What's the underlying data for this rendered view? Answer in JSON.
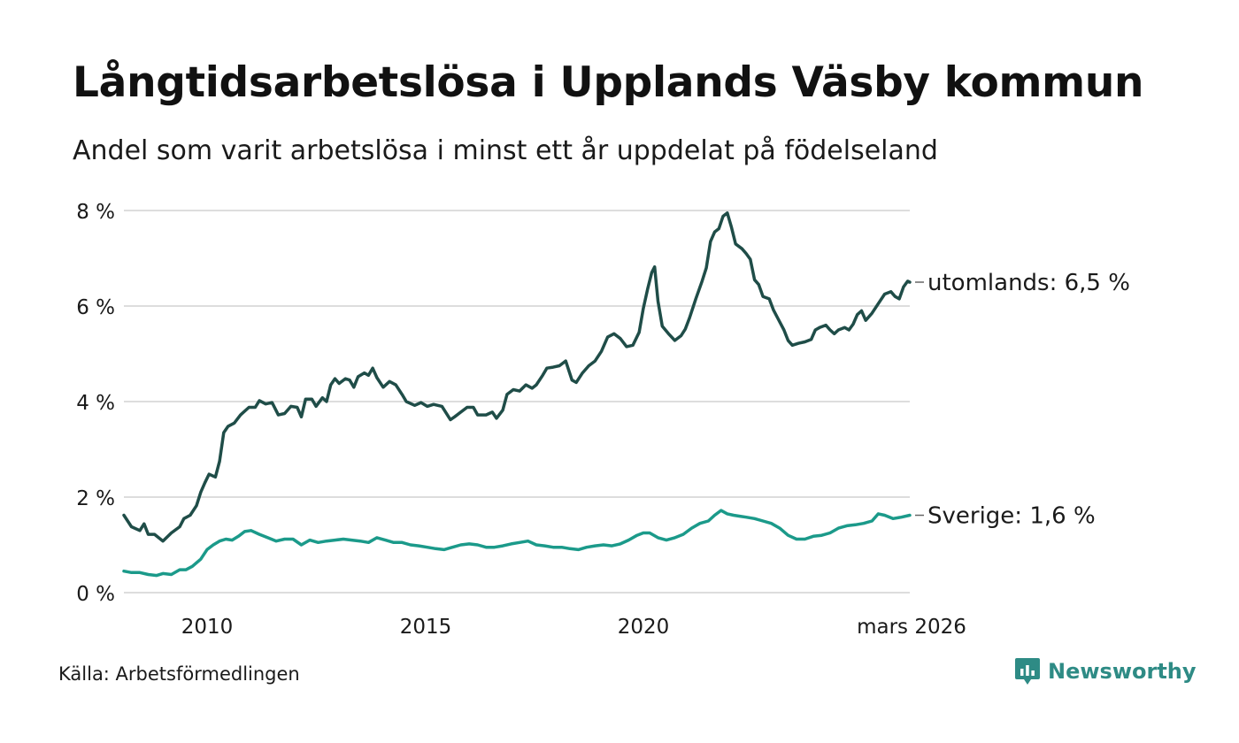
{
  "title": "Långtidsarbetslösa i Upplands Väsby kommun",
  "subtitle": "Andel som varit arbetslösa i minst ett år uppdelat på födelseland",
  "source": "Källa: Arbetsförmedlingen",
  "brand": {
    "name": "Newsworthy",
    "color": "#2e8b85",
    "icon": "newsworthy-logo-icon"
  },
  "colors": {
    "utomlands": "#1f4d48",
    "sverige": "#1b9a8a",
    "grid": "#dddddd",
    "tick": "#666666"
  },
  "chart_data": {
    "type": "line",
    "title": "Långtidsarbetslösa i Upplands Väsby kommun",
    "xlabel": "",
    "ylabel": "",
    "xlim": [
      2008.17,
      2026.17
    ],
    "ylim": [
      0,
      8
    ],
    "y_ticks": [
      {
        "value": 0,
        "label": "0 %"
      },
      {
        "value": 2,
        "label": "2 %"
      },
      {
        "value": 4,
        "label": "4 %"
      },
      {
        "value": 6,
        "label": "6 %"
      },
      {
        "value": 8,
        "label": "8 %"
      }
    ],
    "x_ticks": [
      {
        "value": 2010,
        "label": "2010"
      },
      {
        "value": 2015,
        "label": "2015"
      },
      {
        "value": 2020,
        "label": "2020"
      },
      {
        "value": 2026.17,
        "label": "mars 2026"
      }
    ],
    "series": [
      {
        "name": "utomlands",
        "end_label": "utomlands: 6,5 %",
        "points": [
          [
            2008.17,
            1.62
          ],
          [
            2008.35,
            1.38
          ],
          [
            2008.55,
            1.3
          ],
          [
            2008.65,
            1.44
          ],
          [
            2008.75,
            1.22
          ],
          [
            2008.9,
            1.22
          ],
          [
            2009.1,
            1.08
          ],
          [
            2009.3,
            1.25
          ],
          [
            2009.5,
            1.38
          ],
          [
            2009.6,
            1.55
          ],
          [
            2009.75,
            1.62
          ],
          [
            2009.9,
            1.82
          ],
          [
            2010.0,
            2.1
          ],
          [
            2010.1,
            2.3
          ],
          [
            2010.2,
            2.48
          ],
          [
            2010.35,
            2.42
          ],
          [
            2010.45,
            2.75
          ],
          [
            2010.55,
            3.35
          ],
          [
            2010.65,
            3.48
          ],
          [
            2010.8,
            3.55
          ],
          [
            2010.95,
            3.72
          ],
          [
            2011.15,
            3.88
          ],
          [
            2011.3,
            3.88
          ],
          [
            2011.4,
            4.02
          ],
          [
            2011.55,
            3.95
          ],
          [
            2011.7,
            3.98
          ],
          [
            2011.85,
            3.72
          ],
          [
            2012.0,
            3.75
          ],
          [
            2012.15,
            3.9
          ],
          [
            2012.3,
            3.88
          ],
          [
            2012.4,
            3.68
          ],
          [
            2012.5,
            4.05
          ],
          [
            2012.65,
            4.05
          ],
          [
            2012.75,
            3.9
          ],
          [
            2012.9,
            4.08
          ],
          [
            2013.0,
            4.0
          ],
          [
            2013.1,
            4.35
          ],
          [
            2013.2,
            4.48
          ],
          [
            2013.3,
            4.38
          ],
          [
            2013.45,
            4.48
          ],
          [
            2013.55,
            4.45
          ],
          [
            2013.65,
            4.3
          ],
          [
            2013.75,
            4.52
          ],
          [
            2013.9,
            4.6
          ],
          [
            2014.0,
            4.55
          ],
          [
            2014.1,
            4.7
          ],
          [
            2014.2,
            4.5
          ],
          [
            2014.35,
            4.3
          ],
          [
            2014.5,
            4.42
          ],
          [
            2014.65,
            4.35
          ],
          [
            2014.8,
            4.15
          ],
          [
            2014.9,
            4.0
          ],
          [
            2015.1,
            3.92
          ],
          [
            2015.25,
            3.98
          ],
          [
            2015.4,
            3.9
          ],
          [
            2015.55,
            3.94
          ],
          [
            2015.75,
            3.9
          ],
          [
            2015.95,
            3.62
          ],
          [
            2016.05,
            3.68
          ],
          [
            2016.2,
            3.78
          ],
          [
            2016.35,
            3.88
          ],
          [
            2016.5,
            3.88
          ],
          [
            2016.6,
            3.72
          ],
          [
            2016.8,
            3.72
          ],
          [
            2016.95,
            3.78
          ],
          [
            2017.05,
            3.65
          ],
          [
            2017.2,
            3.82
          ],
          [
            2017.3,
            4.15
          ],
          [
            2017.45,
            4.25
          ],
          [
            2017.6,
            4.22
          ],
          [
            2017.75,
            4.35
          ],
          [
            2017.9,
            4.28
          ],
          [
            2018.0,
            4.35
          ],
          [
            2018.15,
            4.55
          ],
          [
            2018.25,
            4.7
          ],
          [
            2018.4,
            4.72
          ],
          [
            2018.55,
            4.75
          ],
          [
            2018.7,
            4.85
          ],
          [
            2018.85,
            4.45
          ],
          [
            2018.95,
            4.4
          ],
          [
            2019.1,
            4.6
          ],
          [
            2019.25,
            4.75
          ],
          [
            2019.4,
            4.85
          ],
          [
            2019.55,
            5.05
          ],
          [
            2019.7,
            5.35
          ],
          [
            2019.85,
            5.42
          ],
          [
            2020.0,
            5.32
          ],
          [
            2020.15,
            5.15
          ],
          [
            2020.3,
            5.18
          ],
          [
            2020.45,
            5.45
          ],
          [
            2020.55,
            5.95
          ],
          [
            2020.65,
            6.35
          ],
          [
            2020.75,
            6.7
          ],
          [
            2020.82,
            6.82
          ],
          [
            2020.9,
            6.1
          ],
          [
            2021.0,
            5.58
          ],
          [
            2021.15,
            5.42
          ],
          [
            2021.3,
            5.28
          ],
          [
            2021.45,
            5.38
          ],
          [
            2021.55,
            5.52
          ],
          [
            2021.65,
            5.75
          ],
          [
            2021.8,
            6.15
          ],
          [
            2021.95,
            6.52
          ],
          [
            2022.05,
            6.8
          ],
          [
            2022.15,
            7.35
          ],
          [
            2022.25,
            7.55
          ],
          [
            2022.35,
            7.62
          ],
          [
            2022.45,
            7.88
          ],
          [
            2022.55,
            7.95
          ],
          [
            2022.65,
            7.65
          ],
          [
            2022.75,
            7.3
          ],
          [
            2022.9,
            7.2
          ],
          [
            2023.0,
            7.1
          ],
          [
            2023.1,
            6.98
          ],
          [
            2023.2,
            6.55
          ],
          [
            2023.3,
            6.45
          ],
          [
            2023.4,
            6.2
          ],
          [
            2023.55,
            6.15
          ],
          [
            2023.65,
            5.92
          ],
          [
            2023.75,
            5.75
          ],
          [
            2023.9,
            5.5
          ],
          [
            2024.0,
            5.28
          ],
          [
            2024.1,
            5.18
          ],
          [
            2024.25,
            5.22
          ],
          [
            2024.4,
            5.25
          ],
          [
            2024.55,
            5.3
          ],
          [
            2024.65,
            5.5
          ],
          [
            2024.75,
            5.55
          ],
          [
            2024.9,
            5.6
          ],
          [
            2025.0,
            5.5
          ],
          [
            2025.1,
            5.42
          ],
          [
            2025.2,
            5.5
          ],
          [
            2025.35,
            5.55
          ],
          [
            2025.45,
            5.5
          ],
          [
            2025.55,
            5.62
          ],
          [
            2025.65,
            5.82
          ],
          [
            2025.75,
            5.9
          ],
          [
            2025.85,
            5.7
          ],
          [
            2026.0,
            5.85
          ],
          [
            2026.15,
            6.05
          ],
          [
            2026.3,
            6.25
          ],
          [
            2026.45,
            6.3
          ],
          [
            2026.55,
            6.2
          ],
          [
            2026.65,
            6.15
          ],
          [
            2026.75,
            6.4
          ],
          [
            2026.85,
            6.52
          ],
          [
            2026.9,
            6.5
          ]
        ]
      },
      {
        "name": "Sverige",
        "end_label": "Sverige: 1,6 %",
        "points": [
          [
            2008.17,
            0.45
          ],
          [
            2008.35,
            0.42
          ],
          [
            2008.55,
            0.42
          ],
          [
            2008.75,
            0.38
          ],
          [
            2008.95,
            0.36
          ],
          [
            2009.1,
            0.4
          ],
          [
            2009.3,
            0.38
          ],
          [
            2009.5,
            0.48
          ],
          [
            2009.65,
            0.48
          ],
          [
            2009.8,
            0.55
          ],
          [
            2010.0,
            0.7
          ],
          [
            2010.15,
            0.9
          ],
          [
            2010.3,
            1.0
          ],
          [
            2010.45,
            1.08
          ],
          [
            2010.6,
            1.12
          ],
          [
            2010.75,
            1.1
          ],
          [
            2010.9,
            1.18
          ],
          [
            2011.05,
            1.28
          ],
          [
            2011.2,
            1.3
          ],
          [
            2011.4,
            1.22
          ],
          [
            2011.6,
            1.15
          ],
          [
            2011.8,
            1.08
          ],
          [
            2012.0,
            1.12
          ],
          [
            2012.2,
            1.12
          ],
          [
            2012.4,
            1.0
          ],
          [
            2012.6,
            1.1
          ],
          [
            2012.8,
            1.05
          ],
          [
            2013.0,
            1.08
          ],
          [
            2013.2,
            1.1
          ],
          [
            2013.4,
            1.12
          ],
          [
            2013.6,
            1.1
          ],
          [
            2013.8,
            1.08
          ],
          [
            2014.0,
            1.05
          ],
          [
            2014.2,
            1.15
          ],
          [
            2014.4,
            1.1
          ],
          [
            2014.6,
            1.05
          ],
          [
            2014.8,
            1.05
          ],
          [
            2015.0,
            1.0
          ],
          [
            2015.2,
            0.98
          ],
          [
            2015.4,
            0.95
          ],
          [
            2015.6,
            0.92
          ],
          [
            2015.8,
            0.9
          ],
          [
            2016.0,
            0.95
          ],
          [
            2016.2,
            1.0
          ],
          [
            2016.4,
            1.02
          ],
          [
            2016.6,
            1.0
          ],
          [
            2016.8,
            0.95
          ],
          [
            2017.0,
            0.95
          ],
          [
            2017.2,
            0.98
          ],
          [
            2017.4,
            1.02
          ],
          [
            2017.6,
            1.05
          ],
          [
            2017.8,
            1.08
          ],
          [
            2018.0,
            1.0
          ],
          [
            2018.2,
            0.98
          ],
          [
            2018.4,
            0.95
          ],
          [
            2018.6,
            0.95
          ],
          [
            2018.8,
            0.92
          ],
          [
            2019.0,
            0.9
          ],
          [
            2019.2,
            0.95
          ],
          [
            2019.4,
            0.98
          ],
          [
            2019.6,
            1.0
          ],
          [
            2019.8,
            0.98
          ],
          [
            2020.0,
            1.02
          ],
          [
            2020.2,
            1.1
          ],
          [
            2020.4,
            1.2
          ],
          [
            2020.55,
            1.25
          ],
          [
            2020.7,
            1.25
          ],
          [
            2020.9,
            1.15
          ],
          [
            2021.1,
            1.1
          ],
          [
            2021.3,
            1.15
          ],
          [
            2021.5,
            1.22
          ],
          [
            2021.7,
            1.35
          ],
          [
            2021.9,
            1.45
          ],
          [
            2022.1,
            1.5
          ],
          [
            2022.25,
            1.62
          ],
          [
            2022.4,
            1.72
          ],
          [
            2022.55,
            1.65
          ],
          [
            2022.7,
            1.62
          ],
          [
            2022.85,
            1.6
          ],
          [
            2023.0,
            1.58
          ],
          [
            2023.2,
            1.55
          ],
          [
            2023.4,
            1.5
          ],
          [
            2023.6,
            1.45
          ],
          [
            2023.8,
            1.35
          ],
          [
            2024.0,
            1.2
          ],
          [
            2024.2,
            1.12
          ],
          [
            2024.4,
            1.12
          ],
          [
            2024.6,
            1.18
          ],
          [
            2024.8,
            1.2
          ],
          [
            2025.0,
            1.25
          ],
          [
            2025.2,
            1.35
          ],
          [
            2025.4,
            1.4
          ],
          [
            2025.6,
            1.42
          ],
          [
            2025.8,
            1.45
          ],
          [
            2026.0,
            1.5
          ],
          [
            2026.15,
            1.65
          ],
          [
            2026.3,
            1.62
          ],
          [
            2026.5,
            1.55
          ],
          [
            2026.7,
            1.58
          ],
          [
            2026.9,
            1.62
          ]
        ]
      }
    ]
  }
}
